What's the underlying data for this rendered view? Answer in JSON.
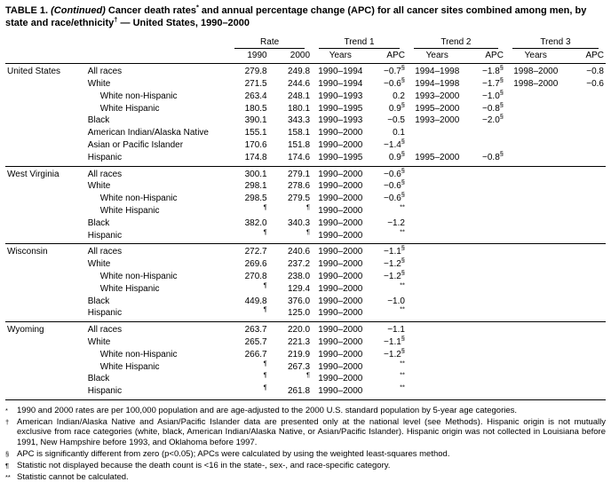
{
  "title": {
    "prefix": "TABLE 1. ",
    "continued": "(Continued)",
    "rest": " Cancer death rates{*} and annual percentage change (APC) for all cancer sites combined among men, by state and race/ethnicity{†} — United States, 1990–2000"
  },
  "header": {
    "groups": [
      "Rate",
      "Trend 1",
      "Trend 2",
      "Trend 3"
    ],
    "subcolumns": {
      "rate1990": "1990",
      "rate2000": "2000",
      "years": "Years",
      "apc": "APC"
    }
  },
  "sections": [
    {
      "state": "United States",
      "rows": [
        {
          "label": "All races",
          "indent": 0,
          "r1990": "279.8",
          "r2000": "249.8",
          "t1y": "1990–1994",
          "t1a": "−0.7{§}",
          "t2y": "1994–1998",
          "t2a": "−1.8{§}",
          "t3y": "1998–2000",
          "t3a": "−0.8"
        },
        {
          "label": "White",
          "indent": 0,
          "r1990": "271.5",
          "r2000": "244.6",
          "t1y": "1990–1994",
          "t1a": "−0.6{§}",
          "t2y": "1994–1998",
          "t2a": "−1.7{§}",
          "t3y": "1998–2000",
          "t3a": "−0.6"
        },
        {
          "label": "White non-Hispanic",
          "indent": 1,
          "r1990": "263.4",
          "r2000": "248.1",
          "t1y": "1990–1993",
          "t1a": "0.2",
          "t2y": "1993–2000",
          "t2a": "−1.0{§}"
        },
        {
          "label": "White Hispanic",
          "indent": 1,
          "r1990": "180.5",
          "r2000": "180.1",
          "t1y": "1990–1995",
          "t1a": "0.9{§}",
          "t2y": "1995–2000",
          "t2a": "−0.8{§}"
        },
        {
          "label": "Black",
          "indent": 0,
          "r1990": "390.1",
          "r2000": "343.3",
          "t1y": "1990–1993",
          "t1a": "−0.5",
          "t2y": "1993–2000",
          "t2a": "−2.0{§}"
        },
        {
          "label": "American Indian/Alaska Native",
          "indent": 0,
          "r1990": "155.1",
          "r2000": "158.1",
          "t1y": "1990–2000",
          "t1a": "0.1"
        },
        {
          "label": "Asian or Pacific Islander",
          "indent": 0,
          "r1990": "170.6",
          "r2000": "151.8",
          "t1y": "1990–2000",
          "t1a": "−1.4{§}"
        },
        {
          "label": "Hispanic",
          "indent": 0,
          "r1990": "174.8",
          "r2000": "174.6",
          "t1y": "1990–1995",
          "t1a": "0.9{§}",
          "t2y": "1995–2000",
          "t2a": "−0.8{§}"
        }
      ]
    },
    {
      "state": "West Virginia",
      "rows": [
        {
          "label": "All races",
          "indent": 0,
          "r1990": "300.1",
          "r2000": "279.1",
          "t1y": "1990–2000",
          "t1a": "−0.6{§}"
        },
        {
          "label": "White",
          "indent": 0,
          "r1990": "298.1",
          "r2000": "278.6",
          "t1y": "1990–2000",
          "t1a": "−0.6{§}"
        },
        {
          "label": "White non-Hispanic",
          "indent": 1,
          "r1990": "298.5",
          "r2000": "279.5",
          "t1y": "1990–2000",
          "t1a": "−0.6{§}"
        },
        {
          "label": "White Hispanic",
          "indent": 1,
          "r1990": "{¶}",
          "r2000": "{¶}",
          "t1y": "1990–2000",
          "t1a": "{**}"
        },
        {
          "label": "Black",
          "indent": 0,
          "r1990": "382.0",
          "r2000": "340.3",
          "t1y": "1990–2000",
          "t1a": "−1.2"
        },
        {
          "label": "Hispanic",
          "indent": 0,
          "r1990": "{¶}",
          "r2000": "{¶}",
          "t1y": "1990–2000",
          "t1a": "{**}"
        }
      ]
    },
    {
      "state": "Wisconsin",
      "rows": [
        {
          "label": "All races",
          "indent": 0,
          "r1990": "272.7",
          "r2000": "240.6",
          "t1y": "1990–2000",
          "t1a": "−1.1{§}"
        },
        {
          "label": "White",
          "indent": 0,
          "r1990": "269.6",
          "r2000": "237.2",
          "t1y": "1990–2000",
          "t1a": "−1.2{§}"
        },
        {
          "label": "White non-Hispanic",
          "indent": 1,
          "r1990": "270.8",
          "r2000": "238.0",
          "t1y": "1990–2000",
          "t1a": "−1.2{§}"
        },
        {
          "label": "White Hispanic",
          "indent": 1,
          "r1990": "{¶}",
          "r2000": "129.4",
          "t1y": "1990–2000",
          "t1a": "{**}"
        },
        {
          "label": "Black",
          "indent": 0,
          "r1990": "449.8",
          "r2000": "376.0",
          "t1y": "1990–2000",
          "t1a": "−1.0"
        },
        {
          "label": "Hispanic",
          "indent": 0,
          "r1990": "{¶}",
          "r2000": "125.0",
          "t1y": "1990–2000",
          "t1a": "{**}"
        }
      ]
    },
    {
      "state": "Wyoming",
      "rows": [
        {
          "label": "All races",
          "indent": 0,
          "r1990": "263.7",
          "r2000": "220.0",
          "t1y": "1990–2000",
          "t1a": "−1.1"
        },
        {
          "label": "White",
          "indent": 0,
          "r1990": "265.7",
          "r2000": "221.3",
          "t1y": "1990–2000",
          "t1a": "−1.1{§}"
        },
        {
          "label": "White non-Hispanic",
          "indent": 1,
          "r1990": "266.7",
          "r2000": "219.9",
          "t1y": "1990–2000",
          "t1a": "−1.2{§}"
        },
        {
          "label": "White Hispanic",
          "indent": 1,
          "r1990": "{¶}",
          "r2000": "267.3",
          "t1y": "1990–2000",
          "t1a": "{**}"
        },
        {
          "label": "Black",
          "indent": 0,
          "r1990": "{¶}",
          "r2000": "{¶}",
          "t1y": "1990–2000",
          "t1a": "{**}"
        },
        {
          "label": "Hispanic",
          "indent": 0,
          "r1990": "{¶}",
          "r2000": "261.8",
          "t1y": "1990–2000",
          "t1a": "{**}"
        }
      ]
    }
  ],
  "footnotes": [
    {
      "marker": "*",
      "text": "1990 and 2000 rates are per 100,000 population and are age-adjusted to the 2000 U.S. standard population by 5-year age categories."
    },
    {
      "marker": "†",
      "text": "American Indian/Alaska Native and Asian/Pacific Islander data are presented only at the national level (see Methods). Hispanic origin is not mutually exclusive from race categories (white, black, American Indian/Alaska Native, or Asian/Pacific Islander). Hispanic origin was not collected in Louisiana before 1991, New Hampshire before 1993, and Oklahoma before 1997."
    },
    {
      "marker": "§",
      "text": "APC is significantly different from zero (p<0.05); APCs were calculated by using the weighted least-squares method."
    },
    {
      "marker": "¶",
      "text": "Statistic not displayed because the death count is <16 in the state-, sex-, and race-specific category."
    },
    {
      "marker": "**",
      "text": "Statistic cannot be calculated."
    }
  ]
}
